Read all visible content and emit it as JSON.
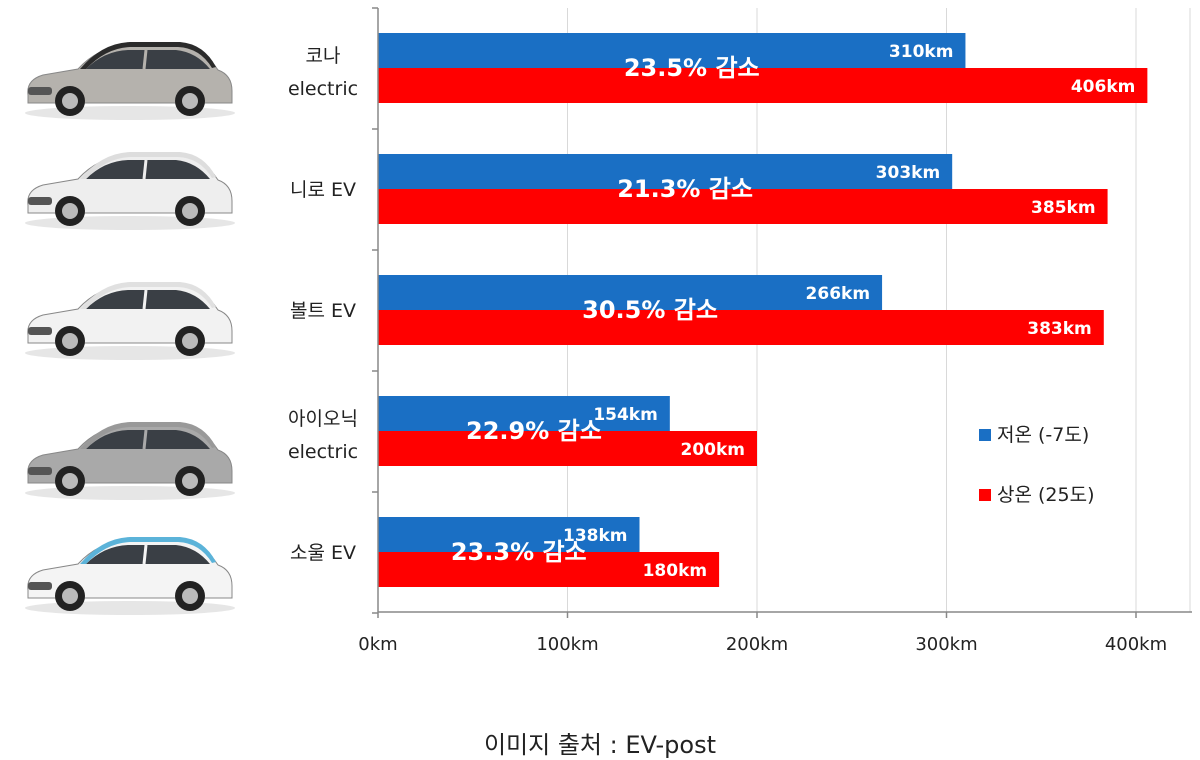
{
  "chart_data": {
    "type": "bar",
    "orientation": "horizontal",
    "categories": [
      [
        "코나",
        "electric"
      ],
      [
        "니로 EV"
      ],
      [
        "볼트 EV"
      ],
      [
        "아이오닉",
        "electric"
      ],
      [
        "소울 EV"
      ]
    ],
    "series": [
      {
        "name": "저온 (-7도)",
        "color": "#1a6fc4",
        "values": [
          310,
          303,
          266,
          154,
          138
        ],
        "labels": [
          "310km",
          "303km",
          "266km",
          "154km",
          "138km"
        ]
      },
      {
        "name": "상온 (25도)",
        "color": "#ff0000",
        "values": [
          406,
          385,
          383,
          200,
          180
        ],
        "labels": [
          "406km",
          "385km",
          "383km",
          "200km",
          "180km"
        ]
      }
    ],
    "annotations": [
      "23.5% 감소",
      "21.3% 감소",
      "30.5% 감소",
      "22.9% 감소",
      "23.3% 감소"
    ],
    "xaxis": {
      "ticks": [
        0,
        100,
        200,
        300,
        400
      ],
      "tick_labels": [
        "0km",
        "100km",
        "200km",
        "300km",
        "400km"
      ],
      "range": [
        0,
        430
      ]
    },
    "grid": true,
    "legend_position": "right"
  },
  "caption": "이미지 출처 : EV-post",
  "car_images": [
    {
      "name": "kona-car-image",
      "body_color": "#b5b2ad",
      "roof_color": "#2b2b2b"
    },
    {
      "name": "niro-car-image",
      "body_color": "#eeeeee",
      "roof_color": "#dddddd"
    },
    {
      "name": "bolt-car-image",
      "body_color": "#f2f2f2",
      "roof_color": "#e0e0e0"
    },
    {
      "name": "ioniq-car-image",
      "body_color": "#a9a9a9",
      "roof_color": "#999999"
    },
    {
      "name": "soul-car-image",
      "body_color": "#f4f4f4",
      "roof_color": "#5bb3d9"
    }
  ]
}
